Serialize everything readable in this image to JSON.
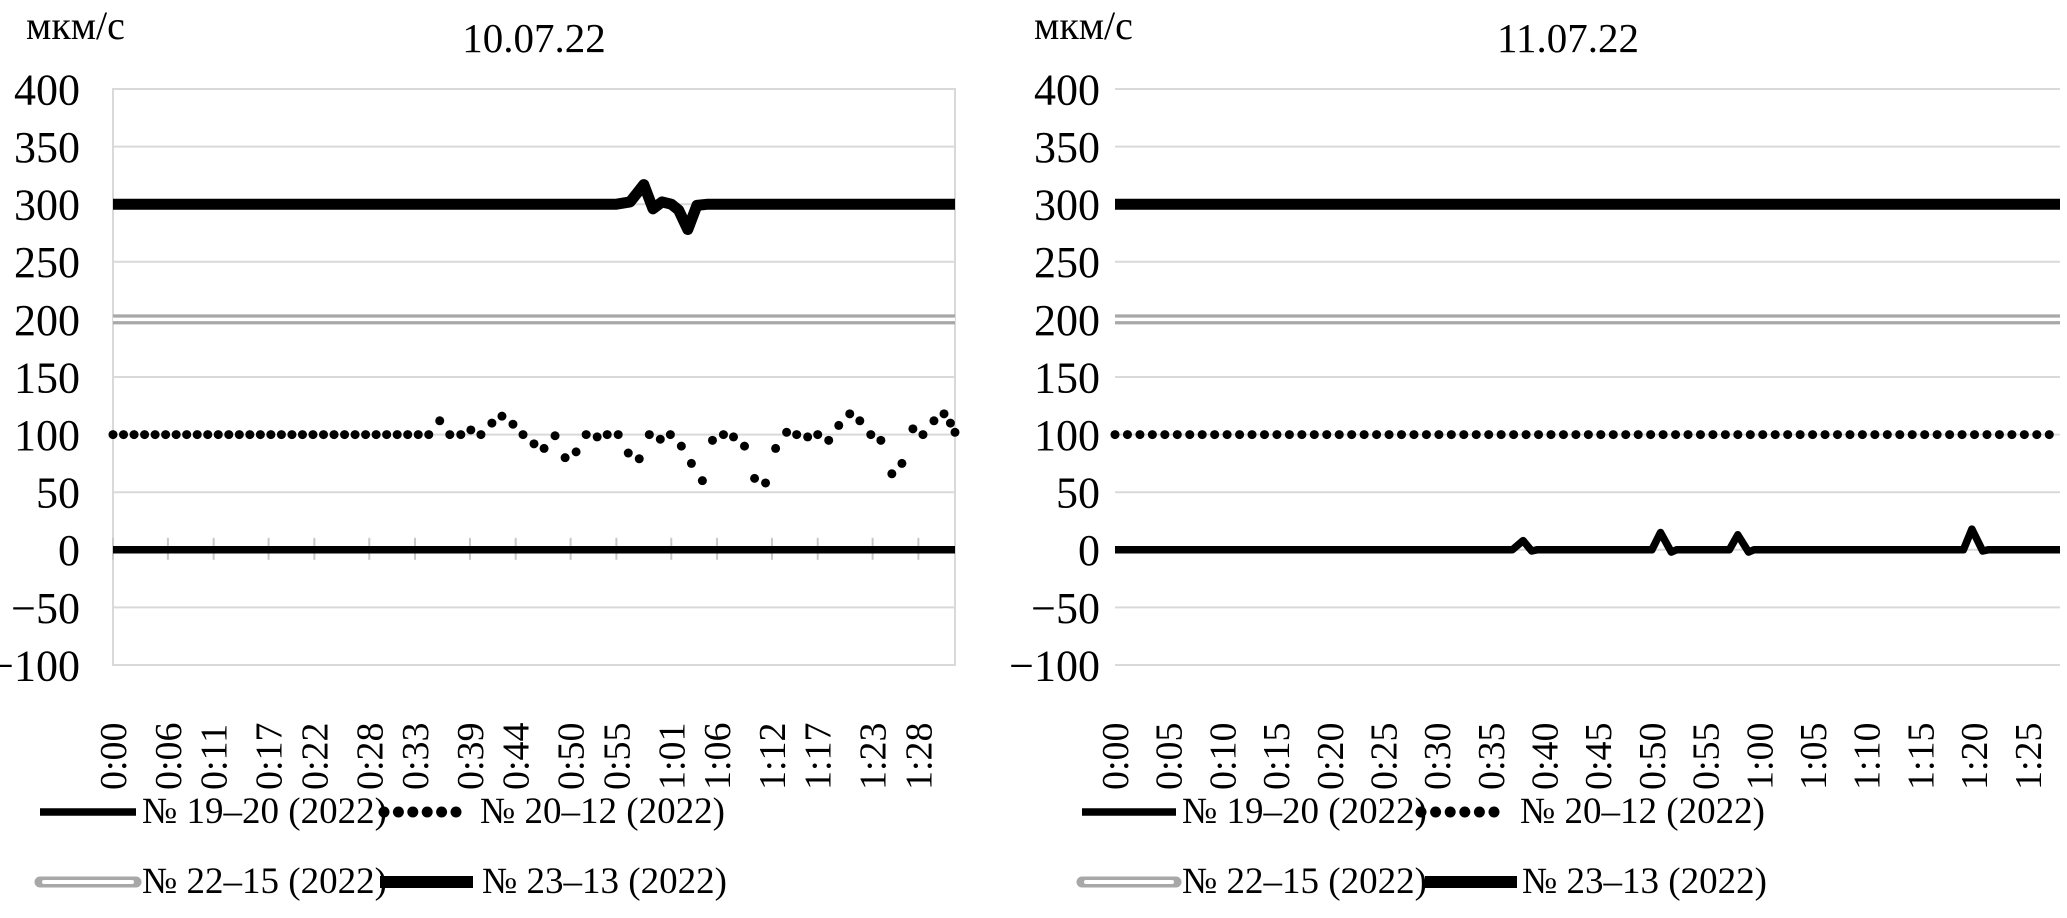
{
  "colors": {
    "series_black": "#000000",
    "series_gray": "#a8a8a8",
    "gridline": "#d9d9d9",
    "axis_tick": "#c8c8c8",
    "text": "#000000",
    "background": "#ffffff"
  },
  "charts": [
    {
      "title": "10.07.22",
      "unit_label": "мкм/с",
      "y_tick_labels": [
        "400",
        "350",
        "300",
        "250",
        "200",
        "150",
        "100",
        "50",
        "0",
        "−50",
        "−100"
      ],
      "y_tick_values": [
        400,
        350,
        300,
        250,
        200,
        150,
        100,
        50,
        0,
        -50,
        -100
      ],
      "x_labels": [
        "0:00",
        "0:06",
        "0:11",
        "0:17",
        "0:22",
        "0:28",
        "0:33",
        "0:39",
        "0:44",
        "0:50",
        "0:55",
        "1:01",
        "1:06",
        "1:12",
        "1:17",
        "1:23",
        "1:28"
      ],
      "x_label_minutes": [
        0,
        6,
        11,
        17,
        22,
        28,
        33,
        39,
        44,
        50,
        55,
        61,
        66,
        72,
        77,
        83,
        88
      ],
      "legend": [
        {
          "label": "№ 19–20 (2022)",
          "style": "solid-black"
        },
        {
          "label": "№ 20–12 (2022)",
          "style": "dotted-black"
        },
        {
          "label": "№ 22–15 (2022)",
          "style": "gray-double"
        },
        {
          "label": "№ 23–13 (2022)",
          "style": "thick-black"
        }
      ],
      "chart_data": {
        "type": "line",
        "title": "10.07.22",
        "ylabel": "мкм/с",
        "ylim": [
          -100,
          400
        ],
        "x_range_minutes": [
          0,
          92
        ],
        "grid": true,
        "plot_border": true,
        "axis_ticks_on_zero": true,
        "series": [
          {
            "name": "№ 19–20 (2022)",
            "style": "solid-black",
            "points": [
              [
                0,
                0
              ],
              [
                92,
                0
              ]
            ]
          },
          {
            "name": "№ 20–12 (2022)",
            "style": "dotted-black",
            "points": [
              [
                0,
                100
              ],
              [
                1.15,
                100
              ],
              [
                2.3,
                100
              ],
              [
                3.45,
                100
              ],
              [
                4.6,
                100
              ],
              [
                5.75,
                100
              ],
              [
                6.9,
                100
              ],
              [
                8.05,
                100
              ],
              [
                9.2,
                100
              ],
              [
                10.35,
                100
              ],
              [
                11.5,
                100
              ],
              [
                12.65,
                100
              ],
              [
                13.8,
                100
              ],
              [
                14.95,
                100
              ],
              [
                16.1,
                100
              ],
              [
                17.25,
                100
              ],
              [
                18.4,
                100
              ],
              [
                19.55,
                100
              ],
              [
                20.7,
                100
              ],
              [
                21.85,
                100
              ],
              [
                23,
                100
              ],
              [
                24.15,
                100
              ],
              [
                25.3,
                100
              ],
              [
                26.45,
                100
              ],
              [
                27.6,
                100
              ],
              [
                28.75,
                100
              ],
              [
                29.9,
                100
              ],
              [
                31.05,
                100
              ],
              [
                32.2,
                100
              ],
              [
                33.35,
                100
              ],
              [
                34.5,
                100
              ],
              [
                35.7,
                112
              ],
              [
                36.8,
                100
              ],
              [
                38,
                100
              ],
              [
                39.1,
                104
              ],
              [
                40.2,
                100
              ],
              [
                41.4,
                110
              ],
              [
                42.5,
                116
              ],
              [
                43.7,
                109
              ],
              [
                44.8,
                100
              ],
              [
                46,
                92
              ],
              [
                47.1,
                88
              ],
              [
                48.3,
                99
              ],
              [
                49.4,
                80
              ],
              [
                50.6,
                85
              ],
              [
                51.7,
                100
              ],
              [
                52.9,
                98
              ],
              [
                54,
                100
              ],
              [
                55.2,
                100
              ],
              [
                56.3,
                84
              ],
              [
                57.5,
                79
              ],
              [
                58.6,
                100
              ],
              [
                59.8,
                96
              ],
              [
                60.9,
                100
              ],
              [
                62.1,
                90
              ],
              [
                63.2,
                75
              ],
              [
                64.4,
                60
              ],
              [
                65.5,
                95
              ],
              [
                66.7,
                100
              ],
              [
                67.8,
                98
              ],
              [
                69,
                90
              ],
              [
                70.1,
                62
              ],
              [
                71.3,
                58
              ],
              [
                72.4,
                88
              ],
              [
                73.6,
                102
              ],
              [
                74.7,
                100
              ],
              [
                75.9,
                98
              ],
              [
                77,
                100
              ],
              [
                78.2,
                95
              ],
              [
                79.3,
                108
              ],
              [
                80.5,
                118
              ],
              [
                81.6,
                112
              ],
              [
                82.8,
                100
              ],
              [
                83.9,
                95
              ],
              [
                85.1,
                66
              ],
              [
                86.2,
                75
              ],
              [
                87.4,
                105
              ],
              [
                88.5,
                100
              ],
              [
                89.7,
                112
              ],
              [
                90.8,
                118
              ],
              [
                91.5,
                110
              ],
              [
                92,
                102
              ]
            ]
          },
          {
            "name": "№ 22–15 (2022)",
            "style": "gray-double",
            "points": [
              [
                0,
                200
              ],
              [
                92,
                200
              ]
            ]
          },
          {
            "name": "№ 23–13 (2022)",
            "style": "thick-black",
            "points": [
              [
                0,
                300
              ],
              [
                55,
                300
              ],
              [
                56.5,
                302
              ],
              [
                58,
                317
              ],
              [
                59,
                296
              ],
              [
                60,
                302
              ],
              [
                61,
                300
              ],
              [
                61.8,
                295
              ],
              [
                62.8,
                278
              ],
              [
                63.8,
                299
              ],
              [
                65,
                300
              ],
              [
                92,
                300
              ]
            ]
          }
        ]
      }
    },
    {
      "title": "11.07.22",
      "unit_label": "мкм/с",
      "y_tick_labels": [
        "400",
        "350",
        "300",
        "250",
        "200",
        "150",
        "100",
        "50",
        "0",
        "−50",
        "−100"
      ],
      "y_tick_values": [
        400,
        350,
        300,
        250,
        200,
        150,
        100,
        50,
        0,
        -50,
        -100
      ],
      "x_labels": [
        "0:00",
        "0:05",
        "0:10",
        "0:15",
        "0:20",
        "0:25",
        "0:30",
        "0:35",
        "0:40",
        "0:45",
        "0:50",
        "0:55",
        "1:00",
        "1:05",
        "1:10",
        "1:15",
        "1:20",
        "1:25"
      ],
      "x_label_minutes": [
        0,
        5,
        10,
        15,
        20,
        25,
        30,
        35,
        40,
        45,
        50,
        55,
        60,
        65,
        70,
        75,
        80,
        85
      ],
      "legend": [
        {
          "label": "№ 19–20 (2022)",
          "style": "solid-black"
        },
        {
          "label": "№ 20–12 (2022)",
          "style": "dotted-black"
        },
        {
          "label": "№ 22–15 (2022)",
          "style": "gray-double"
        },
        {
          "label": "№ 23–13 (2022)",
          "style": "thick-black"
        }
      ],
      "chart_data": {
        "type": "line",
        "title": "11.07.22",
        "ylabel": "мкм/с",
        "ylim": [
          -100,
          400
        ],
        "x_range_minutes": [
          0,
          88
        ],
        "grid": true,
        "plot_border": false,
        "axis_ticks_on_zero": false,
        "series": [
          {
            "name": "№ 19–20 (2022)",
            "style": "solid-black",
            "points": [
              [
                0,
                0
              ],
              [
                37,
                0
              ],
              [
                38,
                8
              ],
              [
                38.8,
                -1
              ],
              [
                39.3,
                0
              ],
              [
                50,
                0
              ],
              [
                50.8,
                15
              ],
              [
                51.8,
                -2
              ],
              [
                52.3,
                0
              ],
              [
                57.2,
                0
              ],
              [
                58,
                13
              ],
              [
                59,
                -2
              ],
              [
                59.5,
                0
              ],
              [
                79,
                0
              ],
              [
                79.8,
                18
              ],
              [
                80.8,
                -1
              ],
              [
                81.3,
                0
              ],
              [
                88,
                0
              ]
            ]
          },
          {
            "name": "№ 20–12 (2022)",
            "style": "dotted-black",
            "points": [
              [
                0,
                100
              ],
              [
                88,
                100
              ]
            ],
            "dot_step": 1.16
          },
          {
            "name": "№ 22–15 (2022)",
            "style": "gray-double",
            "points": [
              [
                0,
                200
              ],
              [
                88,
                200
              ]
            ]
          },
          {
            "name": "№ 23–13 (2022)",
            "style": "thick-black",
            "points": [
              [
                0,
                300
              ],
              [
                88,
                300
              ]
            ]
          }
        ]
      }
    }
  ]
}
